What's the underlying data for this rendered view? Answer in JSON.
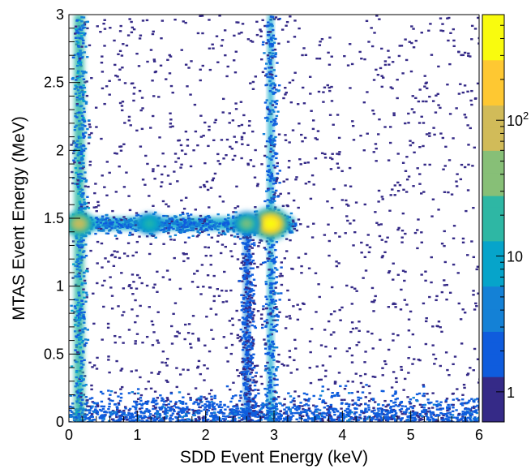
{
  "chart_data": {
    "type": "heatmap",
    "title": "",
    "xlabel": "SDD Event Energy (keV)",
    "ylabel": "MTAS Event Energy (MeV)",
    "xlim": [
      0,
      6
    ],
    "ylim": [
      0,
      3
    ],
    "x_ticks": [
      "0",
      "1",
      "2",
      "3",
      "4",
      "5",
      "6"
    ],
    "y_ticks": [
      "0",
      "0.5",
      "1",
      "1.5",
      "2",
      "2.5",
      "3"
    ],
    "colorbar": {
      "scale": "log",
      "range": [
        0.6,
        600
      ],
      "ticks": [
        {
          "value": 1,
          "label": "1"
        },
        {
          "value": 10,
          "label": "10"
        },
        {
          "value": 100,
          "label": "10",
          "exponent": "2"
        }
      ],
      "colors": [
        "#352a87",
        "#0f5cdd",
        "#1481d6",
        "#06a4ca",
        "#2eb7a4",
        "#87bf77",
        "#d1bb59",
        "#fec832",
        "#f9fb0e"
      ]
    },
    "features": [
      {
        "kind": "vertical-band",
        "x": 0.15,
        "y_range": [
          0,
          3
        ],
        "counts": 20
      },
      {
        "kind": "vertical-band",
        "x": 2.95,
        "y_range": [
          0,
          3
        ],
        "counts": 8
      },
      {
        "kind": "vertical-band",
        "x": 2.6,
        "y_range": [
          0,
          1.5
        ],
        "counts": 3
      },
      {
        "kind": "horizontal-band",
        "y": 1.46,
        "x_range": [
          0.15,
          3.3
        ],
        "counts": 6
      },
      {
        "kind": "peak",
        "x": 2.95,
        "y": 1.46,
        "counts": 500
      },
      {
        "kind": "peak",
        "x": 2.6,
        "y": 1.46,
        "counts": 40
      },
      {
        "kind": "peak",
        "x": 1.18,
        "y": 1.46,
        "counts": 20
      },
      {
        "kind": "peak",
        "x": 0.15,
        "y": 1.46,
        "counts": 60
      },
      {
        "kind": "background",
        "x_range": [
          0,
          6
        ],
        "y_range": [
          0,
          3
        ],
        "concentrated_below_y": 0.3,
        "counts": 1
      }
    ]
  }
}
